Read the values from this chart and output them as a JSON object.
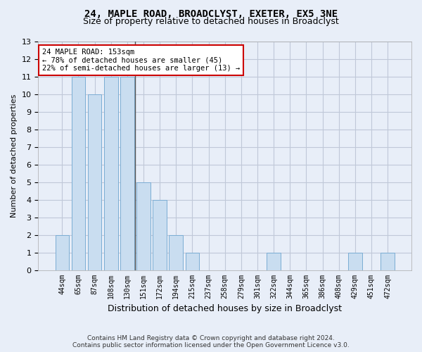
{
  "title": "24, MAPLE ROAD, BROADCLYST, EXETER, EX5 3NE",
  "subtitle": "Size of property relative to detached houses in Broadclyst",
  "xlabel": "Distribution of detached houses by size in Broadclyst",
  "ylabel": "Number of detached properties",
  "categories": [
    "44sqm",
    "65sqm",
    "87sqm",
    "108sqm",
    "130sqm",
    "151sqm",
    "172sqm",
    "194sqm",
    "215sqm",
    "237sqm",
    "258sqm",
    "279sqm",
    "301sqm",
    "322sqm",
    "344sqm",
    "365sqm",
    "386sqm",
    "408sqm",
    "429sqm",
    "451sqm",
    "472sqm"
  ],
  "values": [
    2,
    11,
    10,
    11,
    11,
    5,
    4,
    2,
    1,
    0,
    0,
    0,
    0,
    1,
    0,
    0,
    0,
    0,
    1,
    0,
    1
  ],
  "bar_color": "#c9ddf0",
  "bar_edge_color": "#7badd4",
  "highlight_line_color": "#555555",
  "annotation_line1": "24 MAPLE ROAD: 153sqm",
  "annotation_line2": "← 78% of detached houses are smaller (45)",
  "annotation_line3": "22% of semi-detached houses are larger (13) →",
  "annotation_box_color": "#ffffff",
  "annotation_box_edge": "#cc0000",
  "ylim": [
    0,
    13
  ],
  "yticks": [
    0,
    1,
    2,
    3,
    4,
    5,
    6,
    7,
    8,
    9,
    10,
    11,
    12,
    13
  ],
  "grid_color": "#c0c8d8",
  "bg_color": "#e8eef8",
  "footer1": "Contains HM Land Registry data © Crown copyright and database right 2024.",
  "footer2": "Contains public sector information licensed under the Open Government Licence v3.0."
}
